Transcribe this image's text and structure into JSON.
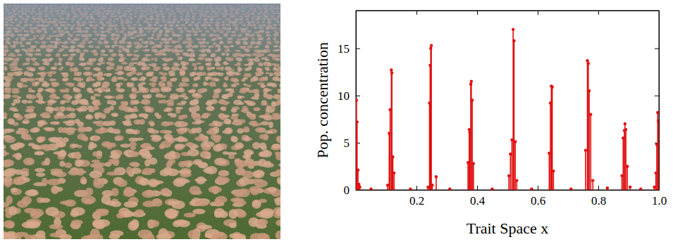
{
  "chart_data": {
    "type": "stem",
    "x_label": "Trait Space x",
    "y_label": "Pop. concentration",
    "color": "#e01010",
    "marker": "circle",
    "x": [
      0.002,
      0.004,
      0.007,
      0.01,
      0.013,
      0.05,
      0.105,
      0.11,
      0.113,
      0.117,
      0.119,
      0.122,
      0.126,
      0.18,
      0.238,
      0.243,
      0.245,
      0.247,
      0.249,
      0.252,
      0.265,
      0.31,
      0.37,
      0.374,
      0.376,
      0.379,
      0.381,
      0.384,
      0.388,
      0.45,
      0.505,
      0.51,
      0.515,
      0.519,
      0.522,
      0.526,
      0.531,
      0.58,
      0.638,
      0.642,
      0.645,
      0.648,
      0.652,
      0.71,
      0.758,
      0.764,
      0.767,
      0.77,
      0.775,
      0.782,
      0.83,
      0.878,
      0.882,
      0.886,
      0.888,
      0.891,
      0.896,
      0.905,
      0.94,
      0.985,
      0.99,
      0.993,
      0.996,
      0.998
    ],
    "values": [
      9.5,
      7.2,
      2.1,
      0.6,
      0.3,
      0.1,
      0.5,
      6.0,
      8.5,
      12.7,
      12.4,
      3.5,
      1.8,
      0.1,
      0.3,
      9.2,
      13.2,
      15.0,
      15.3,
      0.5,
      1.4,
      0.1,
      2.9,
      6.4,
      6.1,
      11.2,
      11.5,
      9.5,
      2.8,
      0.1,
      1.5,
      3.8,
      5.3,
      17.0,
      15.8,
      5.1,
      1.0,
      0.1,
      3.9,
      9.2,
      11.0,
      10.9,
      2.0,
      0.1,
      4.2,
      13.7,
      13.4,
      10.5,
      8.0,
      1.0,
      0.2,
      1.5,
      5.5,
      6.3,
      7.0,
      6.4,
      2.5,
      0.3,
      0.1,
      0.3,
      1.8,
      4.8,
      8.2,
      7.3
    ],
    "xlim": [
      0,
      1
    ],
    "xticks": [
      0.2,
      0.4,
      0.6,
      0.8,
      {
        "value": 1,
        "label": "1.0"
      }
    ],
    "ylim": [
      0,
      19
    ],
    "yticks": [
      0,
      5,
      10,
      15
    ]
  }
}
